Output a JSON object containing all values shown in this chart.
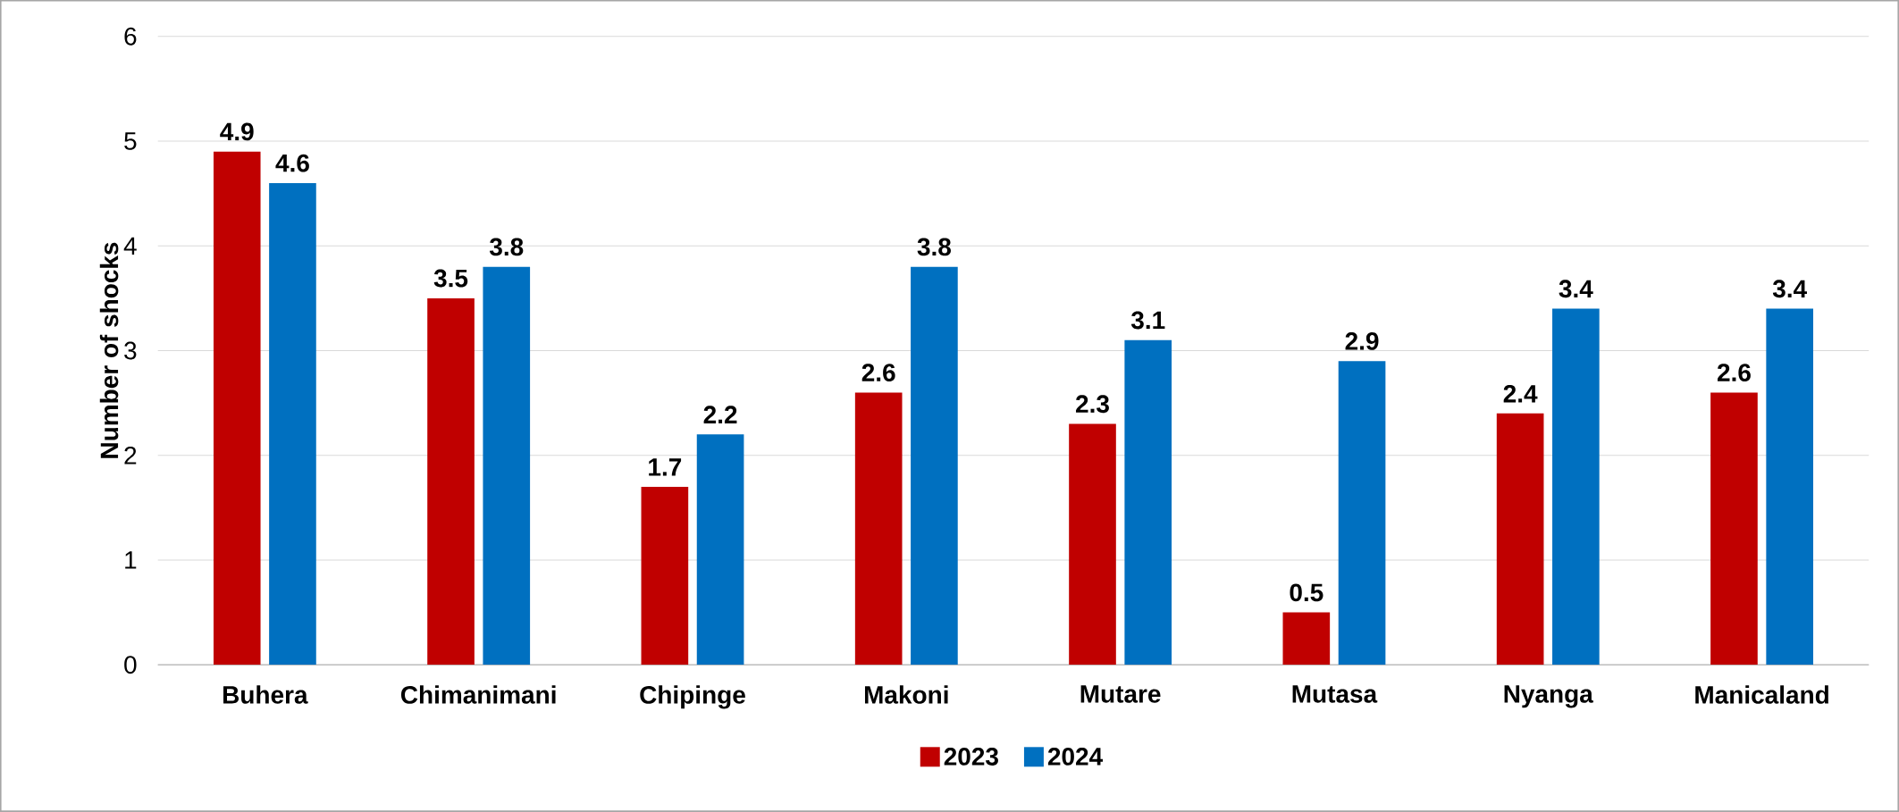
{
  "chart_data": {
    "type": "bar",
    "ylabel": "Number of shocks",
    "categories": [
      "Buhera",
      "Chimanimani",
      "Chipinge",
      "Makoni",
      "Mutare",
      "Mutasa",
      "Nyanga",
      "Manicaland"
    ],
    "series": [
      {
        "name": "2023",
        "color": "#c00000",
        "values": [
          4.9,
          3.5,
          1.7,
          2.6,
          2.3,
          0.5,
          2.4,
          2.6
        ]
      },
      {
        "name": "2024",
        "color": "#0070c0",
        "values": [
          4.6,
          3.8,
          2.2,
          3.8,
          3.1,
          2.9,
          3.4,
          3.4
        ]
      }
    ],
    "ylim": [
      0,
      6
    ],
    "yticks": [
      0,
      1,
      2,
      3,
      4,
      5,
      6
    ],
    "grid": "y",
    "legend": "bottom",
    "data_labels": true
  }
}
